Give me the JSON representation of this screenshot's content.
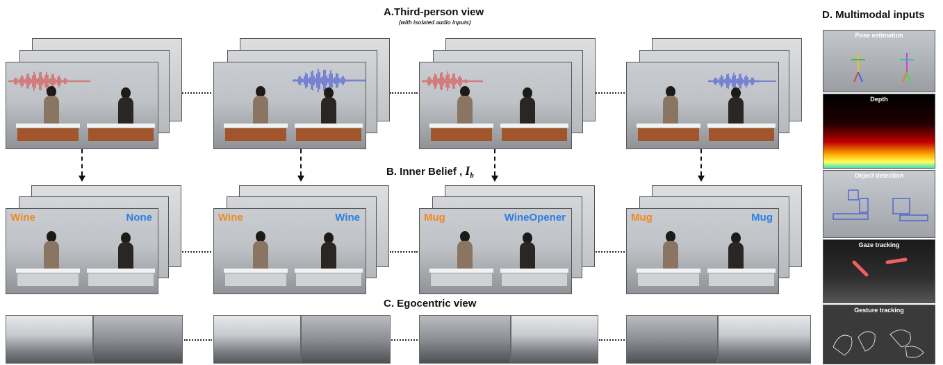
{
  "section_a": {
    "title": "A.Third-person view",
    "subtitle": "(with isolated audio inputs)"
  },
  "section_b": {
    "title_prefix": "B. Inner Belief , ",
    "symbol": "I",
    "subscript": "b"
  },
  "section_c": {
    "title": "C. Egocentric view"
  },
  "section_d": {
    "title": "D. Multimodal inputs",
    "panels": [
      "Pose estimation",
      "Depth",
      "Object detection",
      "Gaze tracking",
      "Gesture tracking"
    ]
  },
  "beliefs": [
    {
      "left": "Wine",
      "right": "None"
    },
    {
      "left": "Wine",
      "right": "Wine"
    },
    {
      "left": "Mug",
      "right": "WineOpener"
    },
    {
      "left": "Mug",
      "right": "Mug"
    }
  ],
  "audio_colors": [
    "#e03030",
    "#2a3fd8",
    "#e03030",
    "#2a3fd8"
  ],
  "colors": {
    "left_label": "#f08a1c",
    "right_label": "#2d7fe0"
  }
}
